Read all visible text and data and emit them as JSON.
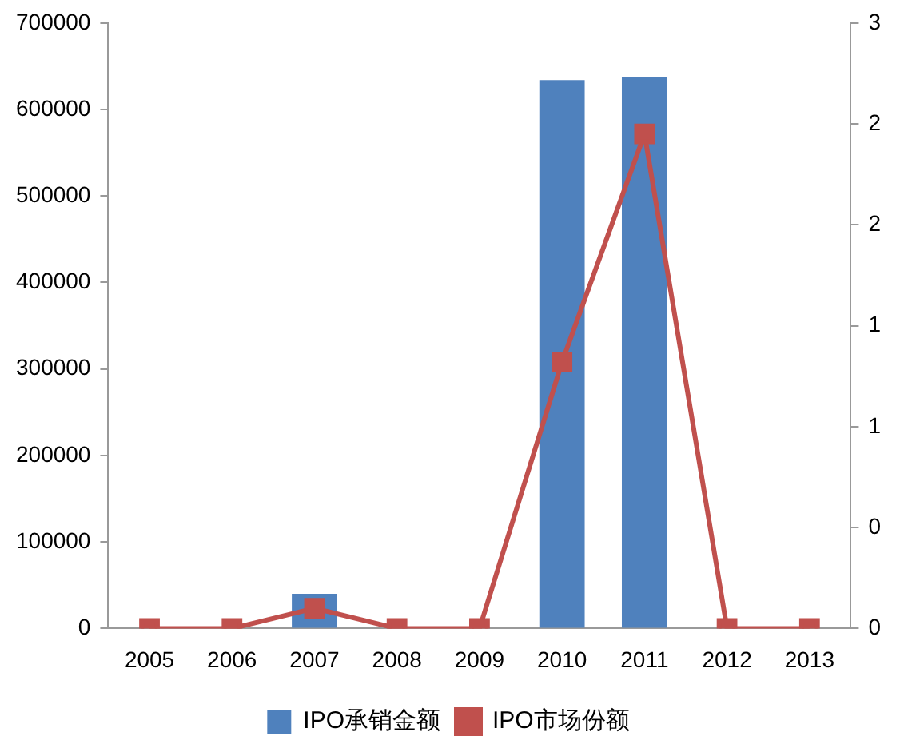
{
  "chart_data": {
    "type": "bar",
    "categories": [
      "2005",
      "2006",
      "2007",
      "2008",
      "2009",
      "2010",
      "2011",
      "2012",
      "2013"
    ],
    "series": [
      {
        "name": "IPO承销金额",
        "color": "#4f81bd",
        "values": [
          0,
          0,
          40000,
          0,
          0,
          634000,
          638000,
          0,
          0
        ]
      },
      {
        "name": "IPO市场份额",
        "type": "line",
        "axis": "y2",
        "color": "#c0504d",
        "marker": "square",
        "values": [
          0,
          0,
          0.1,
          0,
          0,
          1.32,
          2.45,
          0,
          0
        ]
      }
    ],
    "ylim": [
      0,
      700000
    ],
    "yticks": [
      0,
      100000,
      200000,
      300000,
      400000,
      500000,
      600000,
      700000
    ],
    "y2lim": [
      0,
      3
    ],
    "y2ticks": [
      {
        "value": 0,
        "label": "0"
      },
      {
        "value": 0.5,
        "label": "0"
      },
      {
        "value": 1,
        "label": "1"
      },
      {
        "value": 1.5,
        "label": "1"
      },
      {
        "value": 2,
        "label": "2"
      },
      {
        "value": 2.5,
        "label": "2"
      },
      {
        "value": 3,
        "label": "3"
      }
    ],
    "grid": false,
    "legend": "bottom"
  }
}
